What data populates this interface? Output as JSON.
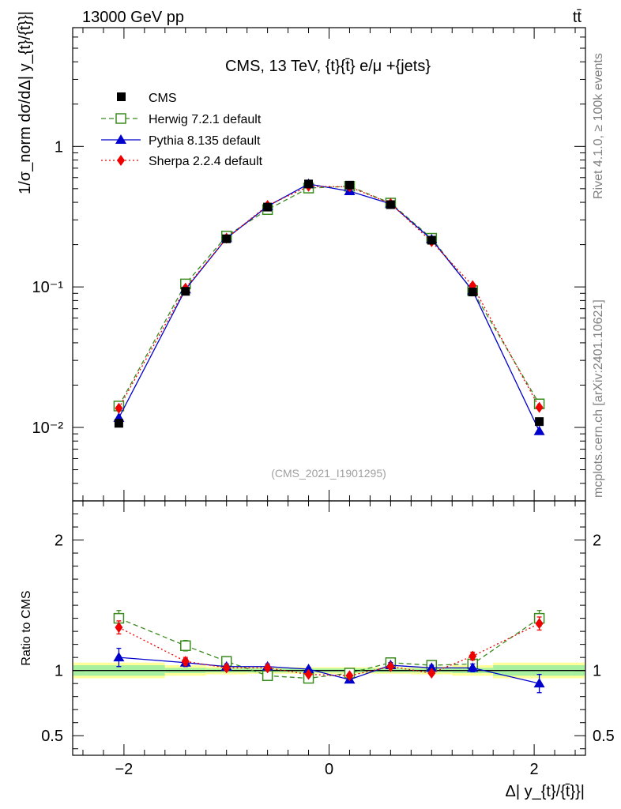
{
  "header": {
    "left": "13000 GeV pp",
    "right": "tt̄"
  },
  "side_labels": {
    "rivet": "Rivet 4.1.0, ≥ 100k events",
    "mcplots": "mcplots.cern.ch [arXiv:2401.10621]"
  },
  "analysis_id": "(CMS_2021_I1901295)",
  "chart_data": {
    "type": "line",
    "title": "CMS, 13 TeV, {t}{t̄} e/μ +{jets}",
    "xlabel": "Δ| y_{t}/{t̄}}|",
    "ylabel": "1/σ_norm dσ/dΔ| y_{t}/{t̄}}|",
    "ratio_ylabel": "Ratio to CMS",
    "yscale": "log",
    "xlim": [
      -2.5,
      2.5
    ],
    "ylim": [
      0.003,
      7
    ],
    "ratio_ylim": [
      0.35,
      2.3
    ],
    "x_ticks": [
      -2,
      0,
      2
    ],
    "x_tick_labels": [
      "−2",
      "0",
      "2"
    ],
    "y_ticks": [
      0.01,
      0.1,
      1
    ],
    "y_tick_labels": [
      "10⁻²",
      "10⁻¹",
      "1"
    ],
    "ratio_ticks": [
      0.5,
      1,
      2
    ],
    "ratio_tick_labels": [
      "0.5",
      "1",
      "2"
    ],
    "bin_edges": [
      -2.5,
      -1.6,
      -1.2,
      -0.8,
      -0.4,
      0,
      0.4,
      0.8,
      1.2,
      1.6,
      2.5
    ],
    "x": [
      -2.05,
      -1.4,
      -1.0,
      -0.6,
      -0.2,
      0.2,
      0.6,
      1.0,
      1.4,
      2.05
    ],
    "data": {
      "name": "CMS",
      "values": [
        0.0107,
        0.093,
        0.22,
        0.37,
        0.54,
        0.53,
        0.385,
        0.215,
        0.092,
        0.011
      ],
      "band_inner": [
        0.04,
        0.02,
        0.015,
        0.015,
        0.015,
        0.015,
        0.015,
        0.015,
        0.02,
        0.04
      ],
      "band_outer": [
        0.06,
        0.04,
        0.03,
        0.025,
        0.025,
        0.025,
        0.025,
        0.03,
        0.04,
        0.06
      ]
    },
    "series": [
      {
        "name": "Herwig 7.2.1 default",
        "color": "#3a8a1e",
        "marker": "open-square",
        "dash": "6,4",
        "values": [
          0.0142,
          0.105,
          0.23,
          0.355,
          0.505,
          0.52,
          0.395,
          0.222,
          0.094,
          0.0147
        ],
        "ratio": [
          1.4,
          1.19,
          1.07,
          0.96,
          0.94,
          0.98,
          1.06,
          1.04,
          1.05,
          1.4
        ],
        "ratio_err": [
          0.06,
          0.04,
          0.02,
          0.02,
          0.02,
          0.02,
          0.02,
          0.02,
          0.04,
          0.06
        ]
      },
      {
        "name": "Pythia 8.135 default",
        "color": "#0000cc",
        "marker": "triangle",
        "dash": "",
        "values": [
          0.0117,
          0.096,
          0.222,
          0.375,
          0.54,
          0.48,
          0.39,
          0.218,
          0.094,
          0.0094
        ],
        "ratio": [
          1.1,
          1.06,
          1.03,
          1.03,
          1.01,
          0.93,
          1.04,
          1.02,
          1.02,
          0.9
        ],
        "ratio_err": [
          0.07,
          0.03,
          0.02,
          0.02,
          0.015,
          0.015,
          0.02,
          0.02,
          0.03,
          0.07
        ]
      },
      {
        "name": "Sherpa 2.2.4 default",
        "color": "#ee0000",
        "marker": "diamond",
        "dash": "2,3",
        "values": [
          0.0137,
          0.098,
          0.222,
          0.38,
          0.52,
          0.515,
          0.392,
          0.21,
          0.102,
          0.0139
        ],
        "ratio": [
          1.33,
          1.07,
          1.02,
          1.02,
          0.97,
          0.96,
          1.03,
          0.98,
          1.11,
          1.36
        ],
        "ratio_err": [
          0.05,
          0.03,
          0.015,
          0.015,
          0.015,
          0.015,
          0.015,
          0.015,
          0.03,
          0.05
        ]
      }
    ],
    "legend_position": "top-left"
  }
}
